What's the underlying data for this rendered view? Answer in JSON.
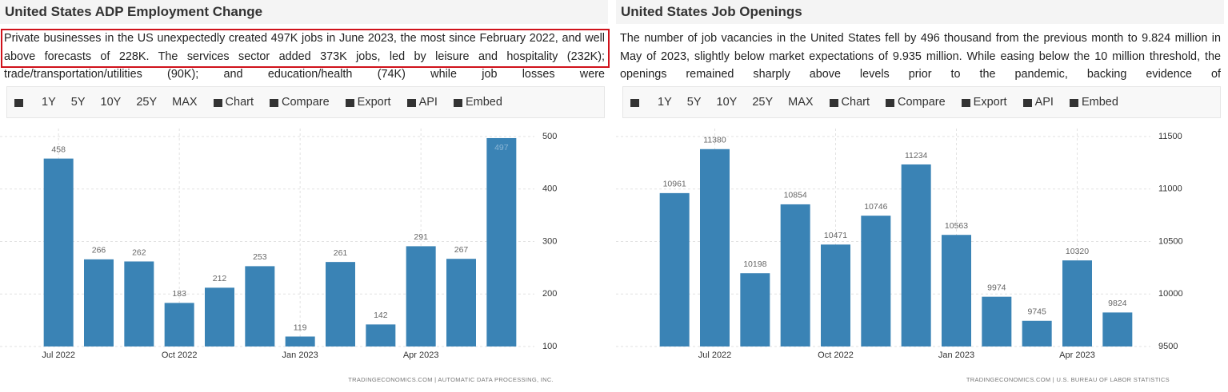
{
  "toolbar": [
    "1Y",
    "5Y",
    "10Y",
    "25Y",
    "MAX",
    "Chart",
    "Compare",
    "Export",
    "API",
    "Embed"
  ],
  "chart_data": [
    {
      "type": "bar",
      "title": "United States ADP Employment Change",
      "description": "Private businesses in the US unexpectedly created 497K jobs in June 2023, the most since February 2022, and well above forecasts of 228K. The services sector added 373K jobs, led by leisure and hospitality (232K); trade/transportation/utilities (90K); and education/health (74K) while job losses were",
      "categories": [
        "Jul 2022",
        null,
        null,
        "Oct 2022",
        null,
        null,
        "Jan 2023",
        null,
        null,
        "Apr 2023",
        null,
        null
      ],
      "values": [
        458,
        266,
        262,
        183,
        212,
        253,
        119,
        261,
        142,
        291,
        267,
        497
      ],
      "color": "#3a83b5",
      "ylim": [
        100,
        500
      ],
      "yticks": [
        100,
        200,
        300,
        400,
        500
      ],
      "grid": true,
      "source": "TRADINGECONOMICS.COM | AUTOMATIC DATA PROCESSING, INC."
    },
    {
      "type": "bar",
      "title": "United States Job Openings",
      "description": "The number of job vacancies in the United States fell by 496 thousand from the previous month to 9.824 million in May of 2023, slightly below market expectations of 9.935 million. While easing below the 10 million threshold, the openings remained sharply above levels prior to the pandemic, backing evidence of",
      "categories": [
        null,
        "Jul 2022",
        null,
        null,
        "Oct 2022",
        null,
        null,
        "Jan 2023",
        null,
        null,
        "Apr 2023",
        null
      ],
      "values": [
        10961,
        11380,
        10198,
        10854,
        10471,
        10746,
        11234,
        10563,
        9974,
        9745,
        10320,
        9824
      ],
      "color": "#3a83b5",
      "ylim": [
        9500,
        11500
      ],
      "yticks": [
        9500,
        10000,
        10500,
        11000,
        11500
      ],
      "grid": true,
      "source": "TRADINGECONOMICS.COM | U.S. BUREAU OF LABOR STATISTICS"
    }
  ]
}
